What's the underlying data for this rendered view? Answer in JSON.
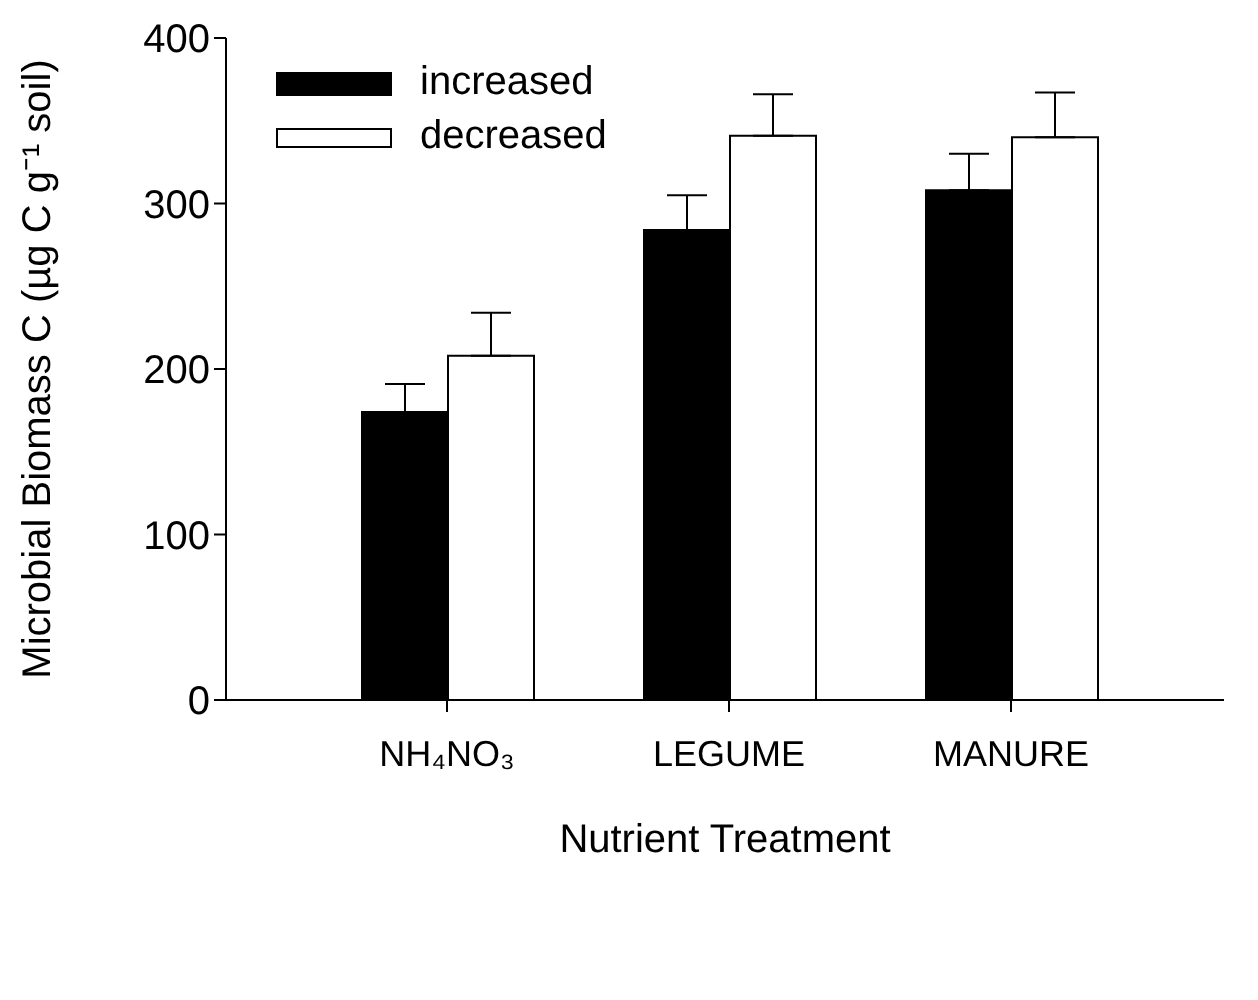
{
  "chart_data": {
    "type": "bar",
    "xlabel": "Nutrient Treatment",
    "ylabel": "Microbial Biomass C (µg C g⁻¹ soil)",
    "categories": [
      "NH₄NO₃",
      "LEGUME",
      "MANURE"
    ],
    "series": [
      {
        "name": "increased",
        "color": "#000000",
        "values": [
          174,
          284,
          308
        ],
        "errors": [
          [
            174,
            191
          ],
          [
            284,
            305
          ],
          [
            308,
            330
          ]
        ]
      },
      {
        "name": "decreased",
        "color": "#ffffff",
        "values": [
          208,
          341,
          340
        ],
        "errors": [
          [
            208,
            234
          ],
          [
            341,
            366
          ],
          [
            340,
            367
          ]
        ]
      }
    ],
    "ylim": [
      0,
      400
    ],
    "yticks": [
      0,
      100,
      200,
      300,
      400
    ],
    "grid": false,
    "legend": "top left"
  }
}
